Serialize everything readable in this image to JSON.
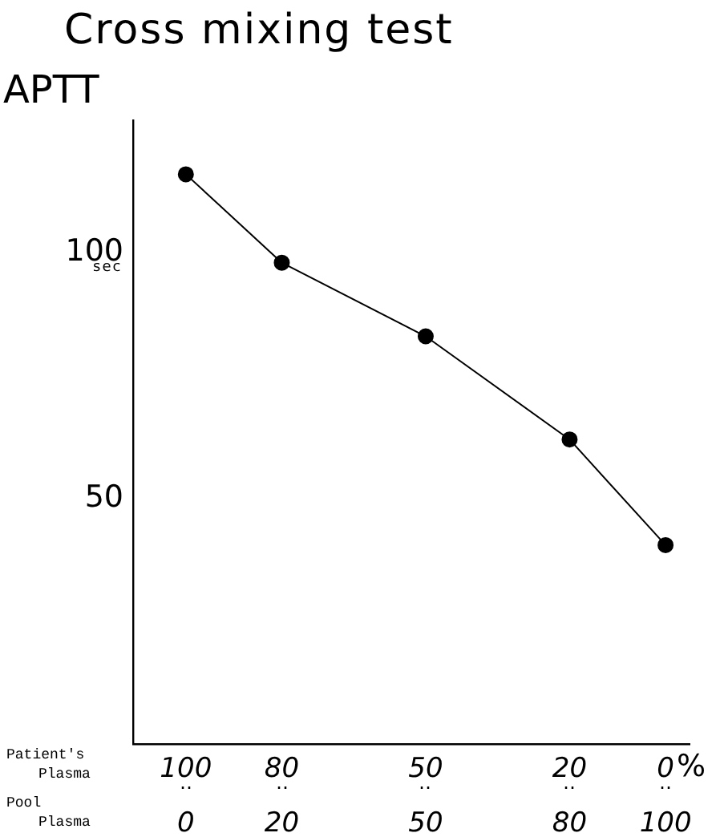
{
  "chart_data": {
    "type": "line",
    "title": "Cross mixing test",
    "ylabel": "APTT",
    "x": [
      100,
      80,
      50,
      20,
      0
    ],
    "series": [
      {
        "color": "#000000",
        "values": [
          116,
          98,
          83,
          62,
          40.5
        ]
      }
    ],
    "xlim": [
      111,
      -5
    ],
    "xticks": [
      100,
      80,
      50,
      20,
      0
    ],
    "x2lim": [
      -11,
      105
    ],
    "x2ticks": [
      0,
      20,
      50,
      80,
      100
    ],
    "ylim": [
      0,
      127
    ],
    "yticks": [
      50,
      100
    ],
    "grid": false,
    "legend": false,
    "marker": "circle",
    "line_style": "solid",
    "annotations": [
      "sec",
      "Patient's\nPlasma",
      "Pool\nPlasma",
      "%",
      "‥",
      "‥",
      "‥",
      "‥",
      "‥"
    ]
  }
}
